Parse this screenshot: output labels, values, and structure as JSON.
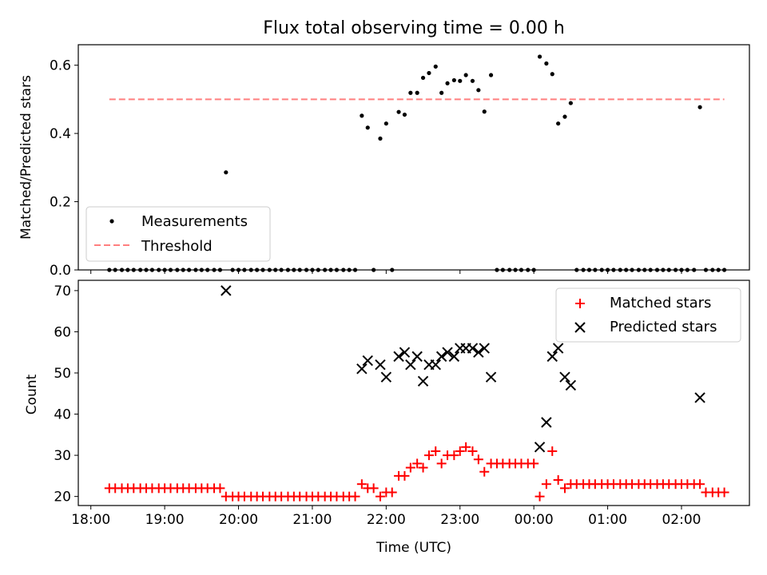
{
  "chart_data": [
    {
      "type": "scatter",
      "title": "Flux total observing time = 0.00 h",
      "ylabel": "Matched/Predicted stars",
      "xlabel": "",
      "xlim": [
        17.83,
        26.92
      ],
      "ylim": [
        0.0,
        0.66
      ],
      "xticks": [
        18,
        19,
        20,
        21,
        22,
        23,
        24,
        25,
        26
      ],
      "yticks": [
        0.0,
        0.2,
        0.4,
        0.6
      ],
      "ytick_labels": [
        "0.0",
        "0.2",
        "0.4",
        "0.6"
      ],
      "legend_placement": "lower-left",
      "grid": false,
      "series": [
        {
          "name": "Measurements",
          "marker": "dot",
          "color": "#000000",
          "x": [
            18.25,
            18.33,
            18.42,
            18.5,
            18.58,
            18.67,
            18.75,
            18.83,
            18.92,
            19.0,
            19.08,
            19.17,
            19.25,
            19.33,
            19.42,
            19.5,
            19.58,
            19.67,
            19.75,
            19.83,
            19.92,
            20.0,
            20.08,
            20.17,
            20.25,
            20.33,
            20.42,
            20.5,
            20.58,
            20.67,
            20.75,
            20.83,
            20.92,
            21.0,
            21.08,
            21.17,
            21.25,
            21.33,
            21.42,
            21.5,
            21.58,
            21.67,
            21.75,
            21.83,
            21.92,
            22.0,
            22.08,
            22.17,
            22.25,
            22.33,
            22.42,
            22.5,
            22.58,
            22.67,
            22.75,
            22.83,
            22.92,
            23.0,
            23.08,
            23.17,
            23.25,
            23.33,
            23.42,
            23.5,
            23.58,
            23.67,
            23.75,
            23.83,
            23.92,
            24.0,
            24.08,
            24.17,
            24.25,
            24.33,
            24.42,
            24.5,
            24.58,
            24.67,
            24.75,
            24.83,
            24.92,
            25.0,
            25.08,
            25.17,
            25.25,
            25.33,
            25.42,
            25.5,
            25.58,
            25.67,
            25.75,
            25.83,
            25.92,
            26.0,
            26.08,
            26.17,
            26.25,
            26.33,
            26.42,
            26.5,
            26.58
          ],
          "y": [
            0,
            0,
            0,
            0,
            0,
            0,
            0,
            0,
            0,
            0,
            0,
            0,
            0,
            0,
            0,
            0,
            0,
            0,
            0,
            0.286,
            0,
            0,
            0,
            0,
            0,
            0,
            0,
            0,
            0,
            0,
            0,
            0,
            0,
            0,
            0,
            0,
            0,
            0,
            0,
            0,
            0,
            0.452,
            0.417,
            0,
            0.385,
            0.429,
            0,
            0.463,
            0.455,
            0.519,
            0.519,
            0.563,
            0.577,
            0.596,
            0.519,
            0.547,
            0.556,
            0.554,
            0.571,
            0.554,
            0.527,
            0.464,
            0.571,
            0,
            0,
            0,
            0,
            0,
            0,
            0,
            0.625,
            0.605,
            0.574,
            0.429,
            0.449,
            0.489,
            0,
            0,
            0,
            0,
            0,
            0,
            0,
            0,
            0,
            0,
            0,
            0,
            0,
            0,
            0,
            0,
            0,
            0,
            0,
            0,
            0.477,
            0,
            0,
            0,
            0
          ]
        },
        {
          "name": "Threshold",
          "style": "dashed",
          "color": "#ff7f7f",
          "x": [
            18.25,
            26.58
          ],
          "y": [
            0.5,
            0.5
          ]
        }
      ]
    },
    {
      "type": "scatter",
      "title": "",
      "ylabel": "Count",
      "xlabel": "Time (UTC)",
      "xlim": [
        17.83,
        26.92
      ],
      "ylim": [
        17.8,
        72.5
      ],
      "xticks": [
        18,
        19,
        20,
        21,
        22,
        23,
        24,
        25,
        26
      ],
      "xtick_labels": [
        "18:00",
        "19:00",
        "20:00",
        "21:00",
        "22:00",
        "23:00",
        "00:00",
        "01:00",
        "02:00"
      ],
      "yticks": [
        20,
        30,
        40,
        50,
        60,
        70
      ],
      "ytick_labels": [
        "20",
        "30",
        "40",
        "50",
        "60",
        "70"
      ],
      "legend_placement": "upper-right",
      "grid": false,
      "series": [
        {
          "name": "Matched stars",
          "marker": "plus",
          "color": "#ff0000",
          "x": [
            18.25,
            18.33,
            18.42,
            18.5,
            18.58,
            18.67,
            18.75,
            18.83,
            18.92,
            19.0,
            19.08,
            19.17,
            19.25,
            19.33,
            19.42,
            19.5,
            19.58,
            19.67,
            19.75,
            19.83,
            19.92,
            20.0,
            20.08,
            20.17,
            20.25,
            20.33,
            20.42,
            20.5,
            20.58,
            20.67,
            20.75,
            20.83,
            20.92,
            21.0,
            21.08,
            21.17,
            21.25,
            21.33,
            21.42,
            21.5,
            21.58,
            21.67,
            21.75,
            21.83,
            21.92,
            22.0,
            22.08,
            22.17,
            22.25,
            22.33,
            22.42,
            22.5,
            22.58,
            22.67,
            22.75,
            22.83,
            22.92,
            23.0,
            23.08,
            23.17,
            23.25,
            23.33,
            23.42,
            23.5,
            23.58,
            23.67,
            23.75,
            23.83,
            23.92,
            24.0,
            24.08,
            24.17,
            24.25,
            24.33,
            24.42,
            24.5,
            24.58,
            24.67,
            24.75,
            24.83,
            24.92,
            25.0,
            25.08,
            25.17,
            25.25,
            25.33,
            25.42,
            25.5,
            25.58,
            25.67,
            25.75,
            25.83,
            25.92,
            26.0,
            26.08,
            26.17,
            26.25,
            26.33,
            26.42,
            26.5,
            26.58
          ],
          "y": [
            22,
            22,
            22,
            22,
            22,
            22,
            22,
            22,
            22,
            22,
            22,
            22,
            22,
            22,
            22,
            22,
            22,
            22,
            22,
            20,
            20,
            20,
            20,
            20,
            20,
            20,
            20,
            20,
            20,
            20,
            20,
            20,
            20,
            20,
            20,
            20,
            20,
            20,
            20,
            20,
            20,
            23,
            22,
            22,
            20,
            21,
            21,
            25,
            25,
            27,
            28,
            27,
            30,
            31,
            28,
            30,
            30,
            31,
            32,
            31,
            29,
            26,
            28,
            28,
            28,
            28,
            28,
            28,
            28,
            28,
            20,
            23,
            31,
            24,
            22,
            23,
            23,
            23,
            23,
            23,
            23,
            23,
            23,
            23,
            23,
            23,
            23,
            23,
            23,
            23,
            23,
            23,
            23,
            23,
            23,
            23,
            23,
            21,
            21,
            21,
            21
          ]
        },
        {
          "name": "Predicted stars",
          "marker": "x",
          "color": "#000000",
          "x": [
            19.83,
            21.67,
            21.75,
            21.92,
            22.0,
            22.17,
            22.25,
            22.33,
            22.42,
            22.5,
            22.58,
            22.67,
            22.75,
            22.83,
            22.92,
            23.0,
            23.08,
            23.17,
            23.25,
            23.33,
            23.42,
            24.08,
            24.17,
            24.25,
            24.33,
            24.42,
            24.5,
            26.25
          ],
          "y": [
            70,
            51,
            53,
            52,
            49,
            54,
            55,
            52,
            54,
            48,
            52,
            52,
            54,
            55,
            54,
            56,
            56,
            56,
            55,
            56,
            49,
            32,
            38,
            54,
            56,
            49,
            47,
            44
          ]
        }
      ]
    }
  ]
}
